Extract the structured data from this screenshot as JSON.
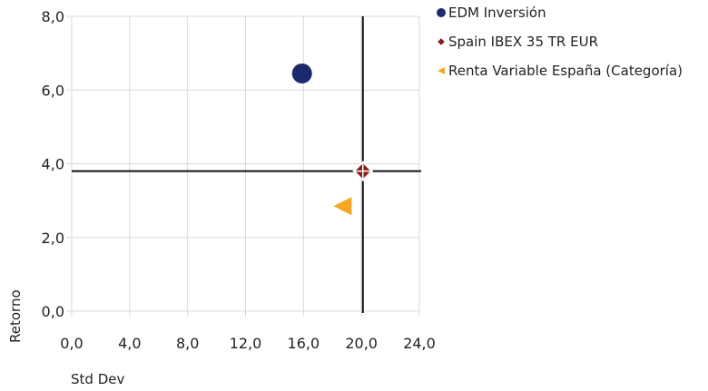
{
  "chart_data": {
    "type": "scatter",
    "title": "",
    "xlabel": "Std Dev",
    "ylabel": "Retorno",
    "xlim": [
      0,
      24
    ],
    "ylim": [
      0,
      8
    ],
    "x_ticks": [
      0,
      4,
      8,
      12,
      16,
      20,
      24
    ],
    "y_ticks": [
      0,
      2,
      4,
      6,
      8
    ],
    "x_tick_labels": [
      "0,0",
      "4,0",
      "8,0",
      "12,0",
      "16,0",
      "20,0",
      "24,0"
    ],
    "y_tick_labels": [
      "0,0",
      "2,0",
      "4,0",
      "6,0",
      "8,0"
    ],
    "grid": true,
    "legend_position": "top-right",
    "benchmark_lines": {
      "x": 20.1,
      "y": 3.8
    },
    "series": [
      {
        "name": "EDM Inversión",
        "x": 15.9,
        "y": 6.45,
        "color": "#1a2a6c",
        "marker": "circle"
      },
      {
        "name": "Spain IBEX 35 TR EUR",
        "x": 20.1,
        "y": 3.8,
        "color": "#8b1a1a",
        "marker": "diamond"
      },
      {
        "name": "Renta Variable España (Categoría)",
        "x": 18.7,
        "y": 2.85,
        "color": "#f5a623",
        "marker": "triangle-left"
      }
    ]
  }
}
